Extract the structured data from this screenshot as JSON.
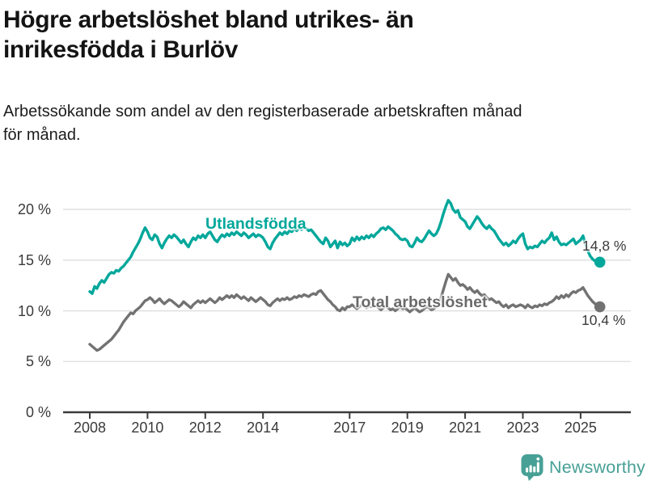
{
  "title": {
    "line1": "Högre arbetslöshet bland utrikes- än",
    "line2": "inrikesfödda i Burlöv"
  },
  "subtitle": {
    "line1": "Arbetssökande som andel av den registerbaserade arbetskraften månad",
    "line2": "för månad."
  },
  "chart_data": {
    "type": "line",
    "title": "Högre arbetslöshet bland utrikes- än inrikesfödda i Burlöv",
    "subtitle": "Arbetssökande som andel av den registerbaserade arbetskraften månad för månad.",
    "x_unit": "month",
    "x_start": "2008-01",
    "x_end": "2025-09",
    "x_tick_years": [
      2008,
      2010,
      2012,
      2014,
      2017,
      2019,
      2021,
      2023,
      2025
    ],
    "y_ticks": [
      {
        "value": 0,
        "label": "0 %"
      },
      {
        "value": 5,
        "label": "5 %"
      },
      {
        "value": 10,
        "label": "10 %"
      },
      {
        "value": 15,
        "label": "15 %"
      },
      {
        "value": 20,
        "label": "20 %"
      }
    ],
    "ylim": [
      0,
      21.5
    ],
    "grid": "horizontal",
    "legend_position": "inline-labels",
    "series": [
      {
        "name": "Utlandsfödda",
        "color": "#00a79b",
        "label_color": "#00a79b",
        "end_label": "14,8 %",
        "end_value": 14.8,
        "values": [
          11.9,
          11.7,
          12.4,
          12.2,
          12.7,
          13.0,
          12.8,
          13.2,
          13.6,
          13.8,
          13.7,
          14.0,
          13.9,
          14.2,
          14.4,
          14.7,
          15.0,
          15.3,
          15.8,
          16.2,
          16.6,
          17.1,
          17.7,
          18.2,
          17.8,
          17.2,
          17.0,
          17.5,
          17.3,
          16.6,
          16.2,
          16.7,
          17.1,
          17.4,
          17.2,
          17.5,
          17.3,
          17.0,
          16.7,
          17.0,
          16.6,
          16.3,
          16.8,
          17.2,
          17.0,
          17.4,
          17.2,
          17.5,
          17.2,
          17.6,
          17.8,
          17.4,
          17.0,
          16.8,
          17.2,
          17.5,
          17.3,
          17.6,
          17.4,
          17.7,
          17.5,
          17.8,
          17.6,
          17.4,
          17.7,
          17.5,
          17.2,
          17.4,
          17.6,
          17.3,
          17.5,
          17.4,
          17.2,
          16.8,
          16.3,
          16.1,
          16.7,
          17.1,
          17.4,
          17.7,
          17.5,
          17.8,
          17.6,
          17.9,
          17.8,
          18.1,
          17.9,
          18.2,
          18.0,
          18.3,
          18.1,
          17.9,
          18.0,
          17.7,
          17.4,
          17.1,
          16.8,
          16.6,
          17.2,
          16.9,
          16.3,
          16.6,
          16.9,
          16.2,
          16.8,
          16.5,
          16.7,
          16.4,
          16.6,
          17.2,
          16.9,
          17.3,
          17.0,
          17.3,
          17.1,
          17.4,
          17.2,
          17.5,
          17.3,
          17.6,
          17.8,
          18.1,
          18.2,
          18.0,
          18.3,
          18.1,
          17.9,
          17.6,
          17.4,
          17.1,
          17.0,
          17.1,
          16.9,
          16.4,
          16.3,
          16.7,
          17.2,
          16.9,
          16.8,
          17.1,
          17.5,
          17.9,
          17.6,
          17.4,
          17.6,
          18.1,
          18.8,
          19.6,
          20.3,
          20.9,
          20.6,
          20.0,
          19.7,
          19.9,
          19.2,
          19.0,
          18.8,
          18.3,
          18.1,
          18.5,
          18.9,
          19.3,
          19.0,
          18.6,
          18.3,
          18.1,
          18.4,
          18.1,
          17.9,
          17.5,
          17.1,
          16.8,
          16.5,
          16.7,
          16.4,
          16.6,
          16.9,
          16.7,
          17.1,
          17.4,
          17.6,
          16.6,
          16.1,
          16.3,
          16.2,
          16.4,
          16.3,
          16.6,
          16.9,
          16.7,
          17.0,
          17.2,
          17.7,
          17.0,
          17.3,
          16.8,
          16.5,
          16.6,
          16.5,
          16.7,
          16.9,
          17.1,
          16.6,
          16.8,
          17.0,
          17.4,
          16.6,
          15.9,
          15.4,
          15.1,
          14.9,
          14.8,
          14.8
        ]
      },
      {
        "name": "Total arbetslöshet",
        "color": "#727272",
        "label_color": "#6a6a6a",
        "end_label": "10,4 %",
        "end_value": 10.4,
        "values": [
          6.7,
          6.5,
          6.3,
          6.1,
          6.2,
          6.4,
          6.6,
          6.8,
          7.0,
          7.2,
          7.5,
          7.8,
          8.1,
          8.5,
          8.9,
          9.2,
          9.5,
          9.8,
          9.7,
          10.0,
          10.2,
          10.4,
          10.7,
          11.0,
          11.1,
          11.3,
          11.1,
          10.8,
          11.0,
          11.2,
          10.9,
          10.7,
          10.9,
          11.1,
          11.0,
          10.8,
          10.6,
          10.4,
          10.6,
          10.9,
          10.7,
          10.5,
          10.3,
          10.6,
          10.8,
          11.0,
          10.8,
          11.0,
          10.8,
          11.0,
          11.2,
          11.0,
          10.8,
          11.0,
          11.3,
          11.1,
          11.3,
          11.5,
          11.3,
          11.5,
          11.3,
          11.6,
          11.4,
          11.2,
          11.4,
          11.2,
          11.0,
          11.3,
          11.1,
          10.9,
          11.1,
          11.3,
          11.1,
          10.9,
          10.6,
          10.5,
          10.8,
          11.0,
          11.2,
          11.0,
          11.2,
          11.1,
          11.3,
          11.1,
          11.2,
          11.4,
          11.3,
          11.5,
          11.4,
          11.6,
          11.5,
          11.4,
          11.6,
          11.7,
          11.6,
          11.9,
          12.0,
          11.7,
          11.4,
          11.1,
          10.9,
          10.6,
          10.4,
          10.1,
          10.0,
          10.3,
          10.1,
          10.4,
          10.4,
          10.6,
          10.4,
          10.2,
          10.4,
          10.6,
          10.5,
          10.3,
          10.5,
          10.4,
          10.6,
          10.5,
          10.3,
          10.1,
          10.3,
          10.5,
          10.3,
          10.1,
          10.2,
          10.0,
          10.2,
          10.4,
          10.2,
          10.3,
          10.1,
          9.9,
          10.1,
          10.3,
          10.1,
          9.9,
          10.0,
          10.2,
          10.4,
          10.3,
          10.1,
          10.2,
          10.4,
          10.7,
          11.3,
          12.1,
          12.9,
          13.6,
          13.3,
          13.0,
          13.2,
          12.8,
          12.5,
          12.6,
          12.4,
          12.1,
          12.3,
          12.0,
          11.8,
          12.0,
          11.7,
          11.5,
          11.6,
          11.3,
          11.1,
          11.2,
          11.0,
          10.8,
          10.9,
          10.6,
          10.4,
          10.6,
          10.3,
          10.5,
          10.6,
          10.4,
          10.5,
          10.6,
          10.5,
          10.3,
          10.6,
          10.4,
          10.3,
          10.5,
          10.4,
          10.6,
          10.5,
          10.7,
          10.6,
          10.8,
          10.9,
          11.1,
          11.4,
          11.2,
          11.5,
          11.3,
          11.6,
          11.4,
          11.7,
          11.9,
          11.8,
          12.0,
          12.1,
          12.3,
          11.9,
          11.5,
          11.2,
          10.9,
          10.7,
          10.5,
          10.4
        ]
      }
    ],
    "axis_colors": {
      "grid": "#dedede",
      "axis": "#3b3b3b",
      "tick_text": "#3a3a3a"
    }
  },
  "logo": {
    "text": "Newsworthy",
    "color": "#47a096",
    "icon": "bar-chart-speech-bubble"
  }
}
